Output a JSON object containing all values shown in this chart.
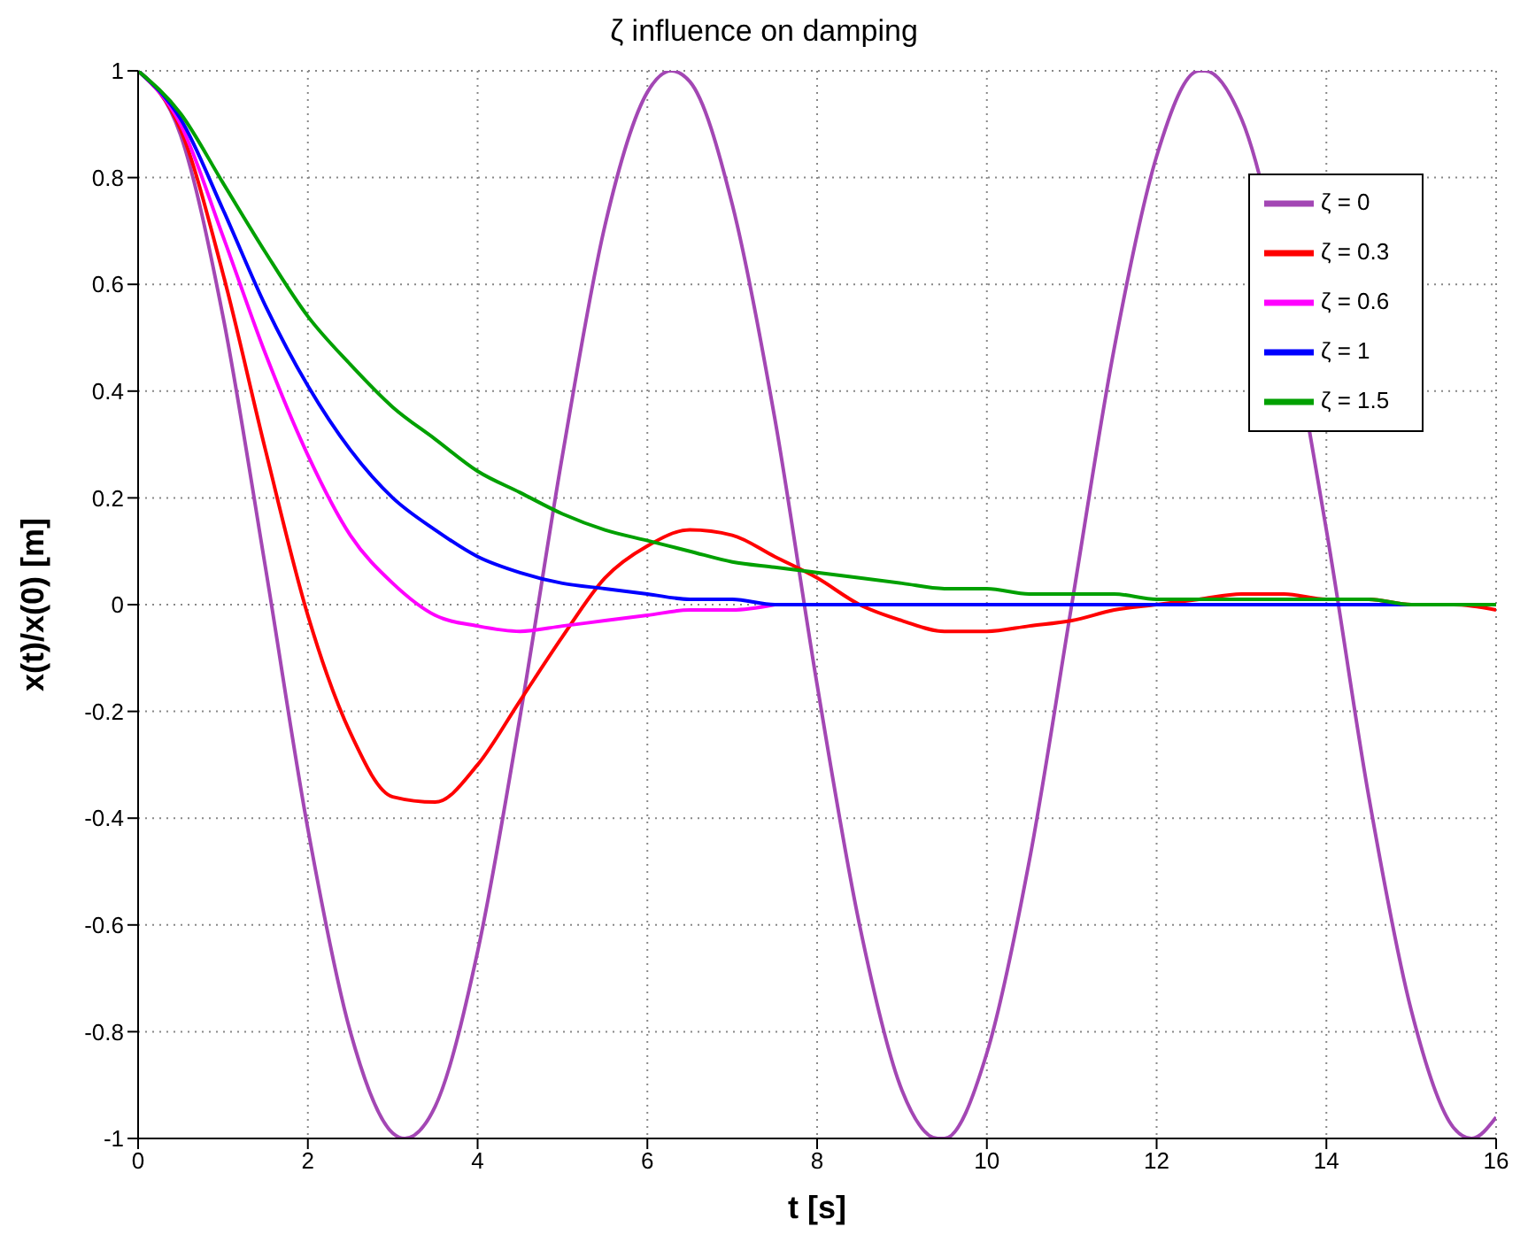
{
  "chart_data": {
    "type": "line",
    "title": "ζ influence on damping",
    "xlabel": "t [s]",
    "ylabel": "x(t)/x(0) [m]",
    "x": [
      0,
      0.5,
      1,
      1.5,
      2,
      2.5,
      3,
      3.5,
      4,
      4.5,
      5,
      5.5,
      6,
      6.5,
      7,
      7.5,
      8,
      8.5,
      9,
      9.5,
      10,
      10.5,
      11,
      11.5,
      12,
      12.5,
      13,
      13.5,
      14,
      14.5,
      15,
      15.5,
      16
    ],
    "series": [
      {
        "name": "ζ = 0",
        "color": "#a347b4",
        "x": [
          0,
          0.5,
          1,
          1.5,
          2,
          2.5,
          3,
          3.14,
          3.5,
          4,
          4.5,
          5,
          5.5,
          6,
          6.28,
          6.5,
          7,
          7.5,
          8,
          8.5,
          9,
          9.42,
          9.5,
          10,
          10.5,
          11,
          11.5,
          12,
          12.5,
          12.57,
          13,
          14,
          14.5,
          15,
          15.5,
          15.71,
          16
        ],
        "values": [
          1,
          0.88,
          0.54,
          0.07,
          -0.42,
          -0.8,
          -0.99,
          -1,
          -0.94,
          -0.65,
          -0.21,
          0.28,
          0.71,
          0.96,
          1,
          0.98,
          0.75,
          0.35,
          -0.15,
          -0.6,
          -0.91,
          -1,
          -1,
          -0.84,
          -0.48,
          0,
          0.48,
          0.84,
          1,
          1,
          0.91,
          0.14,
          -0.36,
          -0.76,
          -0.98,
          -1,
          -0.96
        ]
      },
      {
        "name": "ζ = 0.3",
        "color": "#ff0000",
        "values": [
          1,
          0.89,
          0.62,
          0.29,
          -0.02,
          -0.24,
          -0.36,
          -0.37,
          -0.3,
          -0.18,
          -0.06,
          0.05,
          0.11,
          0.14,
          0.13,
          0.09,
          0.05,
          0,
          -0.03,
          -0.05,
          -0.05,
          -0.04,
          -0.03,
          -0.01,
          0,
          0.01,
          0.02,
          0.02,
          0.01,
          0.01,
          0,
          0,
          -0.01
        ]
      },
      {
        "name": "ζ = 0.6",
        "color": "#ff00ff",
        "values": [
          1,
          0.9,
          0.69,
          0.47,
          0.28,
          0.13,
          0.04,
          -0.02,
          -0.04,
          -0.05,
          -0.04,
          -0.03,
          -0.02,
          -0.01,
          -0.01,
          0,
          null,
          null,
          null,
          null,
          null,
          null,
          null,
          null,
          null,
          null,
          null,
          null,
          null,
          null,
          null,
          null,
          null
        ]
      },
      {
        "name": "ζ = 1",
        "color": "#0000ff",
        "values": [
          1,
          0.91,
          0.74,
          0.56,
          0.41,
          0.29,
          0.2,
          0.14,
          0.09,
          0.06,
          0.04,
          0.03,
          0.02,
          0.01,
          0.01,
          0,
          0,
          0,
          0,
          0,
          0,
          0,
          0,
          0,
          0,
          0,
          0,
          0,
          0,
          0,
          0,
          0,
          0
        ]
      },
      {
        "name": "ζ = 1.5",
        "color": "#00a000",
        "values": [
          1,
          0.92,
          0.79,
          0.66,
          0.54,
          0.45,
          0.37,
          0.31,
          0.25,
          0.21,
          0.17,
          0.14,
          0.12,
          0.1,
          0.08,
          0.07,
          0.06,
          0.05,
          0.04,
          0.03,
          0.03,
          0.02,
          0.02,
          0.02,
          0.01,
          0.01,
          0.01,
          0.01,
          0.01,
          0.01,
          0,
          0,
          0
        ]
      }
    ],
    "xlim": [
      0,
      16
    ],
    "xticks": [
      0,
      2,
      4,
      6,
      8,
      10,
      12,
      14,
      16
    ],
    "ylim": [
      -1,
      1
    ],
    "yticks": [
      -1,
      -0.8,
      -0.6,
      -0.4,
      -0.2,
      0,
      0.2,
      0.4,
      0.6,
      0.8,
      1
    ],
    "grid": true,
    "legend": "top right"
  }
}
